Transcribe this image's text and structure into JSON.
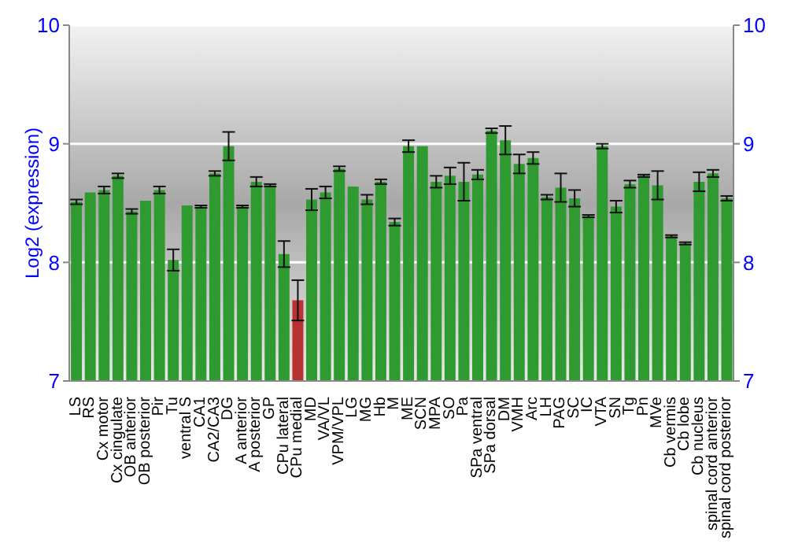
{
  "chart_data": {
    "type": "bar",
    "ylabel": "Log2 (expression)",
    "categories": [
      "LS",
      "RS",
      "Cx motor",
      "Cx cingulate",
      "OB anterior",
      "OB posterior",
      "Pir",
      "Tu",
      "ventral S",
      "CA1",
      "CA2/CA3",
      "DG",
      "A anterior",
      "A posterior",
      "GP",
      "CPu lateral",
      "CPu medial",
      "MD",
      "VA/VL",
      "VPM/VPL",
      "LG",
      "MG",
      "Hb",
      "M",
      "ME",
      "SCN",
      "MPA",
      "SO",
      "Pa",
      "SPa ventral",
      "SPa dorsal",
      "DM",
      "VMH",
      "Arc",
      "LH",
      "PAG",
      "SC",
      "IC",
      "VTA",
      "SN",
      "Tg",
      "Pn",
      "MVe",
      "Cb vermis",
      "Cb lobe",
      "Cb nucleus",
      "spinal cord anterior",
      "spinal cord posterior"
    ],
    "values": [
      8.51,
      8.59,
      8.61,
      8.73,
      8.43,
      8.52,
      8.61,
      8.02,
      8.48,
      8.47,
      8.75,
      8.98,
      8.47,
      8.68,
      8.65,
      8.07,
      7.68,
      8.53,
      8.59,
      8.79,
      8.64,
      8.53,
      8.68,
      8.34,
      8.98,
      8.98,
      8.68,
      8.73,
      8.68,
      8.74,
      9.11,
      9.03,
      8.83,
      8.88,
      8.55,
      8.63,
      8.54,
      8.39,
      8.98,
      8.47,
      8.66,
      8.73,
      8.65,
      8.22,
      8.16,
      8.68,
      8.75,
      8.54
    ],
    "errors": [
      0.02,
      null,
      0.03,
      0.02,
      0.02,
      null,
      0.03,
      0.09,
      null,
      0.01,
      0.02,
      0.12,
      0.01,
      0.04,
      0.01,
      0.11,
      0.17,
      0.09,
      0.05,
      0.02,
      null,
      0.04,
      0.02,
      0.03,
      0.05,
      null,
      0.05,
      0.07,
      0.16,
      0.04,
      0.02,
      0.12,
      0.08,
      0.05,
      0.02,
      0.12,
      0.07,
      0.01,
      0.02,
      0.05,
      0.03,
      0.01,
      0.12,
      0.01,
      0.01,
      0.08,
      0.03,
      0.02
    ],
    "colors": [
      "#2f9a2f",
      "#2f9a2f",
      "#2f9a2f",
      "#2f9a2f",
      "#2f9a2f",
      "#2f9a2f",
      "#2f9a2f",
      "#2f9a2f",
      "#2f9a2f",
      "#2f9a2f",
      "#2f9a2f",
      "#2f9a2f",
      "#2f9a2f",
      "#2f9a2f",
      "#2f9a2f",
      "#2f9a2f",
      "#b83232",
      "#2f9a2f",
      "#2f9a2f",
      "#2f9a2f",
      "#2f9a2f",
      "#2f9a2f",
      "#2f9a2f",
      "#2f9a2f",
      "#2f9a2f",
      "#2f9a2f",
      "#2f9a2f",
      "#2f9a2f",
      "#2f9a2f",
      "#2f9a2f",
      "#2f9a2f",
      "#2f9a2f",
      "#2f9a2f",
      "#2f9a2f",
      "#2f9a2f",
      "#2f9a2f",
      "#2f9a2f",
      "#2f9a2f",
      "#2f9a2f",
      "#2f9a2f",
      "#2f9a2f",
      "#2f9a2f",
      "#2f9a2f",
      "#2f9a2f",
      "#2f9a2f",
      "#2f9a2f",
      "#2f9a2f",
      "#2f9a2f"
    ],
    "ylim": [
      7,
      10
    ],
    "yticks": [
      7,
      8,
      9,
      10
    ],
    "y2lim": [
      7,
      10
    ],
    "y2ticks": [
      7,
      8,
      9,
      10
    ],
    "grid": "y"
  }
}
